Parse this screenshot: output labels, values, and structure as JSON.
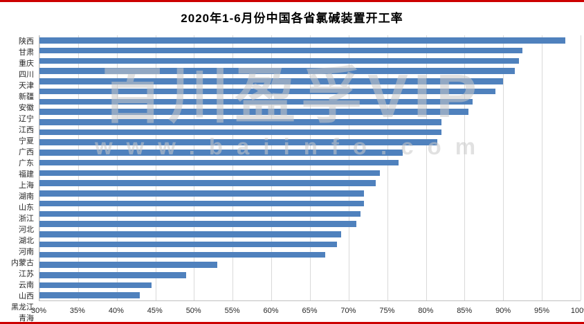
{
  "page": {
    "title": "2020年1-6月份中国各省氯碱装置开工率"
  },
  "watermark": {
    "line1": "百川盈孚VIP",
    "line2": "www.baiinfo.com"
  },
  "chart_data": {
    "type": "bar",
    "orientation": "horizontal",
    "title": "2020年1-6月份中国各省氯碱装置开工率",
    "categories": [
      "陕西",
      "甘肃",
      "重庆",
      "四川",
      "天津",
      "新疆",
      "安徽",
      "辽宁",
      "江西",
      "宁夏",
      "广西",
      "广东",
      "福建",
      "上海",
      "湖南",
      "山东",
      "浙江",
      "河北",
      "湖北",
      "河南",
      "内蒙古",
      "江苏",
      "云南",
      "山西",
      "黑龙江",
      "青海"
    ],
    "values": [
      98,
      92.5,
      92,
      91.5,
      90,
      89,
      86,
      85.5,
      82,
      82,
      81.5,
      77,
      76.5,
      74,
      73.5,
      72,
      72,
      71.5,
      71,
      69,
      68.5,
      67,
      53,
      49,
      44.5,
      43
    ],
    "unit": "%",
    "xlim": [
      30,
      100
    ],
    "xticks": [
      "30%",
      "35%",
      "40%",
      "45%",
      "50%",
      "55%",
      "60%",
      "65%",
      "70%",
      "75%",
      "80%",
      "85%",
      "90%",
      "95%",
      "100%"
    ],
    "xtick_values": [
      30,
      35,
      40,
      45,
      50,
      55,
      60,
      65,
      70,
      75,
      80,
      85,
      90,
      95,
      100
    ],
    "bar_color": "#4f81bd",
    "grid": true,
    "legend": "none"
  }
}
